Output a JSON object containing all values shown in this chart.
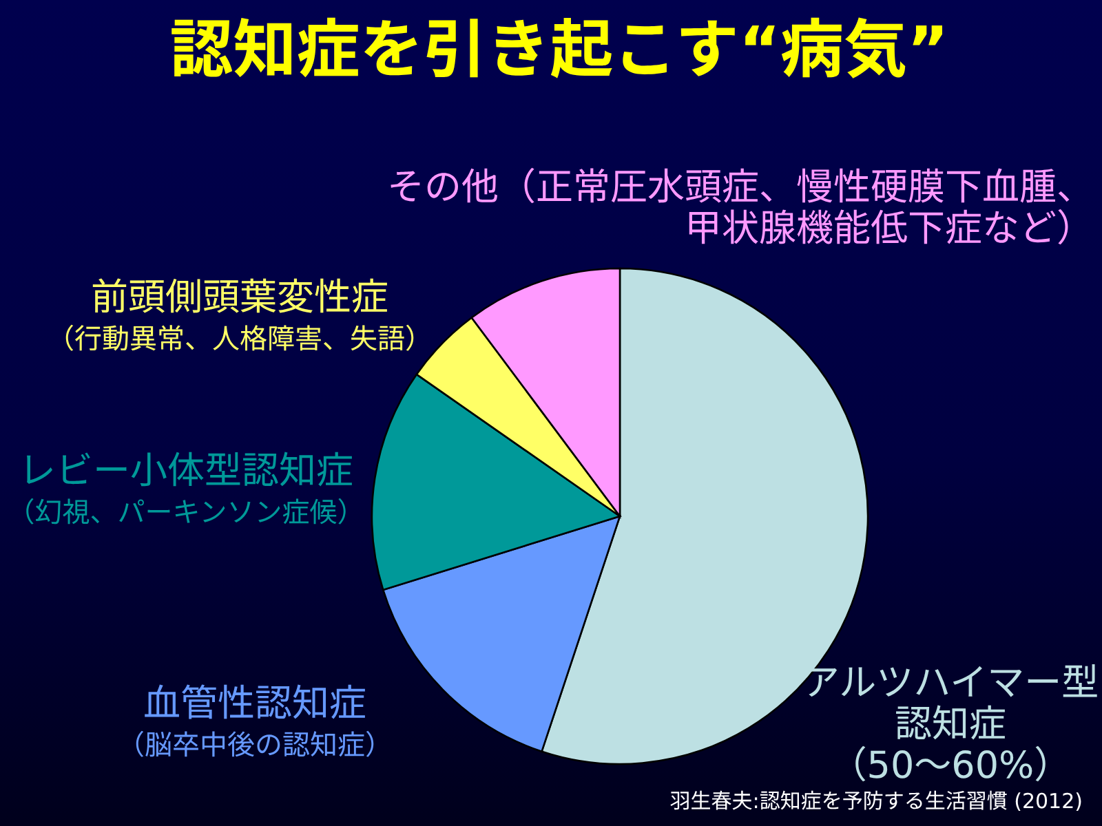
{
  "chart_data": {
    "type": "pie",
    "title": "認知症を引き起こす“病気”",
    "categories": [
      "アルツハイマー型認知症（50～60%）",
      "血管性認知症（脳卒中後の認知症）",
      "レビー小体型認知症（幻視、パーキンソン症候）",
      "前頭側頭葉変性症（行動異常、人格障害、失語）",
      "その他（正常圧水頭症、慢性硬膜下血腫、甲状腺機能低下症など）"
    ],
    "values": [
      55.1,
      15.1,
      14.5,
      5.1,
      10.2
    ],
    "colors": [
      "#bde0e3",
      "#6699ff",
      "#009999",
      "#ffff66",
      "#ff99ff"
    ],
    "annotations": [
      "羽生春夫:認知症を予防する生活習慣 (2012)"
    ]
  }
}
